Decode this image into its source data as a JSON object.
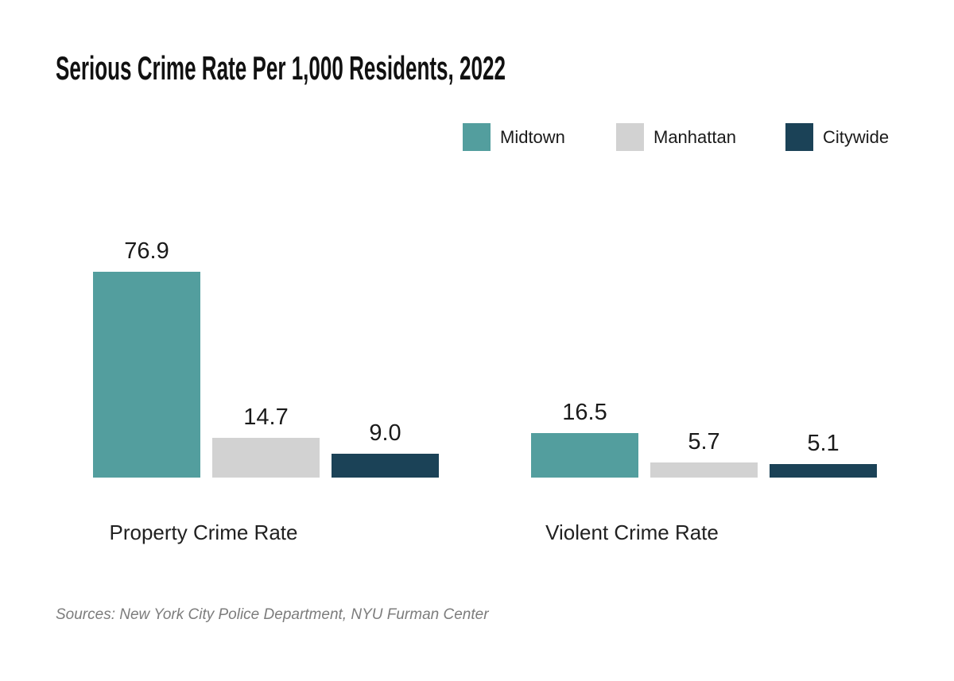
{
  "chart_data": {
    "type": "bar",
    "title": "Serious Crime Rate Per 1,000 Residents, 2022",
    "categories": [
      "Property Crime Rate",
      "Violent Crime Rate"
    ],
    "series": [
      {
        "name": "Midtown",
        "color": "#539e9e",
        "values": [
          76.9,
          16.5
        ],
        "labels": [
          "76.9",
          "16.5"
        ]
      },
      {
        "name": "Manhattan",
        "color": "#d2d2d2",
        "values": [
          14.7,
          5.7
        ],
        "labels": [
          "14.7",
          "5.7"
        ]
      },
      {
        "name": "Citywide",
        "color": "#1b4257",
        "values": [
          9.0,
          5.1
        ],
        "labels": [
          "9.0",
          "5.1"
        ]
      }
    ],
    "ylim": [
      0,
      80
    ],
    "grid": false,
    "axis_lines": false,
    "legend_position": "top-right",
    "value_labels_shown": true,
    "text_color": "#1a1a1a",
    "background_color": "#ffffff"
  },
  "source_note": "Sources: New York City Police Department, NYU Furman Center"
}
